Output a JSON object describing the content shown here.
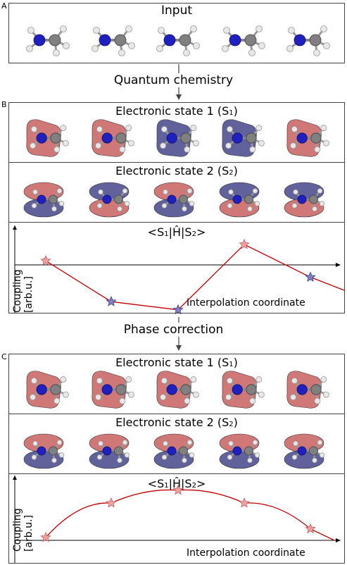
{
  "sections": {
    "a_label": "A",
    "b_label": "B",
    "c_label": "C"
  },
  "input_panel": {
    "title": "Input",
    "molecule_count": 5
  },
  "step1": {
    "label": "Quantum chemistry"
  },
  "step2": {
    "label": "Phase correction"
  },
  "panel_b": {
    "state1": {
      "title": "Electronic state 1 (S",
      "sub": "1",
      "close": ")",
      "orbital_colors": [
        "red",
        "red",
        "blue",
        "blue",
        "red"
      ]
    },
    "state2": {
      "title": "Electronic state 2 (S",
      "sub": "2",
      "close": ")",
      "top_colors": [
        "red",
        "blue",
        "red",
        "blue",
        "blue"
      ]
    },
    "coupling": {
      "title_pre": "<S",
      "title_sub1": "1",
      "title_mid": "|Ĥ|S",
      "title_sub2": "2",
      "title_post": ">",
      "ylabel_1": "Coupling",
      "ylabel_2": "[arb.u.]",
      "xlabel": "Interpolation coordinate"
    }
  },
  "panel_c": {
    "state1": {
      "title": "Electronic state 1 (S",
      "sub": "1",
      "close": ")",
      "orbital_colors": [
        "red",
        "red",
        "red",
        "red",
        "red"
      ]
    },
    "state2": {
      "title": "Electronic state 2 (S",
      "sub": "2",
      "close": ")",
      "top_colors": [
        "red",
        "red",
        "red",
        "red",
        "red"
      ]
    },
    "coupling": {
      "title_pre": "<S",
      "title_sub1": "1",
      "title_mid": "|Ĥ|S",
      "title_sub2": "2",
      "title_post": ">",
      "ylabel_1": "Coupling",
      "ylabel_2": "[arb.u.]",
      "xlabel": "Interpolation coordinate"
    }
  },
  "chart_data": [
    {
      "type": "line",
      "title": "<S1|Ĥ|S2>",
      "xlabel": "Interpolation coordinate",
      "ylabel": "Coupling [arb.u.]",
      "x": [
        1,
        2,
        3,
        4,
        5
      ],
      "series": [
        {
          "values": [
            0.1,
            -0.9,
            -1.1,
            0.5,
            -0.3
          ],
          "marker_colors": [
            "red",
            "blue",
            "blue",
            "red",
            "blue"
          ]
        }
      ],
      "line_color": "#c00000"
    },
    {
      "type": "line",
      "title": "<S1|Ĥ|S2>",
      "xlabel": "Interpolation coordinate",
      "ylabel": "Coupling [arb.u.]",
      "x": [
        1,
        2,
        3,
        4,
        5
      ],
      "series": [
        {
          "values": [
            0.1,
            0.9,
            1.2,
            0.9,
            0.3
          ],
          "marker_colors": [
            "red",
            "red",
            "red",
            "red",
            "red"
          ]
        }
      ],
      "line_color": "#c00000"
    }
  ],
  "colors": {
    "red_lobe": "#c86060",
    "blue_lobe": "#45458a",
    "nitrogen": "#2020c0",
    "carbon": "#808080",
    "curve": "#c00000"
  }
}
